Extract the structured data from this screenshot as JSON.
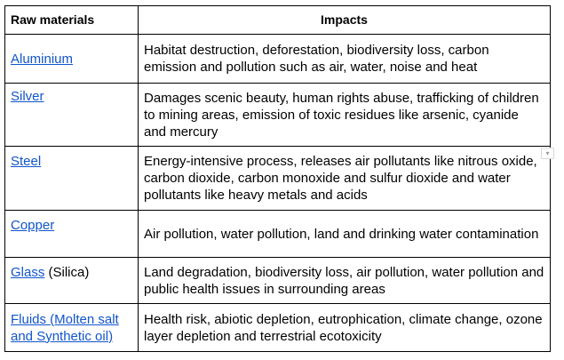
{
  "table": {
    "headers": {
      "raw_materials": "Raw materials",
      "impacts": "Impacts"
    },
    "rows": [
      {
        "material_link": "Aluminium",
        "material_suffix": "",
        "impact": "Habitat destruction, deforestation, biodiversity loss, carbon emission and pollution such as air, water, noise and heat"
      },
      {
        "material_link": "Silver",
        "material_suffix": "",
        "impact": "Damages scenic beauty, human rights abuse, trafficking of children to mining areas, emission of toxic residues like arsenic, cyanide and mercury"
      },
      {
        "material_link": "Steel",
        "material_suffix": "",
        "impact": "Energy-intensive process, releases air pollutants like nitrous oxide, carbon dioxide, carbon monoxide and sulfur dioxide and water pollutants like heavy metals and acids"
      },
      {
        "material_link": "Copper",
        "material_suffix": "",
        "impact": "Air pollution, water pollution, land and drinking water contamination"
      },
      {
        "material_link": "Glass",
        "material_suffix": " (Silica)",
        "impact": "Land degradation, biodiversity loss, air pollution, water pollution and public health issues in surrounding areas"
      },
      {
        "material_link": "Fluids (Molten salt and Synthetic oil)",
        "material_suffix": "",
        "impact": "Health risk, abiotic depletion, eutrophication, climate change, ozone layer depletion and terrestrial ecotoxicity"
      }
    ]
  },
  "scroll_marker": {
    "icon": "chevron-down-icon",
    "glyph": "▾"
  },
  "colors": {
    "link": "#1155cc",
    "border": "#000000"
  }
}
